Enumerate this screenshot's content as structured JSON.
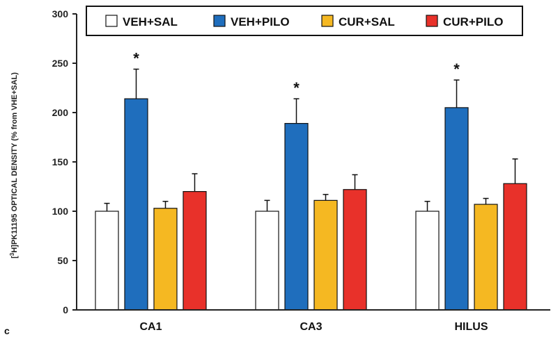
{
  "panel_letter": "c",
  "chart_data": {
    "type": "bar",
    "ylabel_prefix": "[",
    "ylabel_sup": "3",
    "ylabel_rest": "H]PK11195 OPTICAL DENSITY (% from VHE+SAL)",
    "ylim": [
      0,
      300
    ],
    "yticks": [
      0,
      50,
      100,
      150,
      200,
      250,
      300
    ],
    "categories": [
      "CA1",
      "CA3",
      "HILUS"
    ],
    "legend_position": "top",
    "grid": false,
    "series": [
      {
        "name": "VEH+SAL",
        "color": "#ffffff",
        "values": [
          100,
          100,
          100
        ],
        "errors": [
          8,
          11,
          10
        ]
      },
      {
        "name": "VEH+PILO",
        "color": "#1f6ebd",
        "values": [
          214,
          189,
          205
        ],
        "errors": [
          30,
          25,
          28
        ]
      },
      {
        "name": "CUR+SAL",
        "color": "#f5b822",
        "values": [
          103,
          111,
          107
        ],
        "errors": [
          7,
          6,
          6
        ]
      },
      {
        "name": "CUR+PILO",
        "color": "#e8312a",
        "values": [
          120,
          122,
          128
        ],
        "errors": [
          18,
          15,
          25
        ]
      }
    ],
    "annotations": [
      {
        "text": "*",
        "series": 1,
        "category": 0
      },
      {
        "text": "*",
        "series": 1,
        "category": 1
      },
      {
        "text": "*",
        "series": 1,
        "category": 2
      }
    ]
  }
}
